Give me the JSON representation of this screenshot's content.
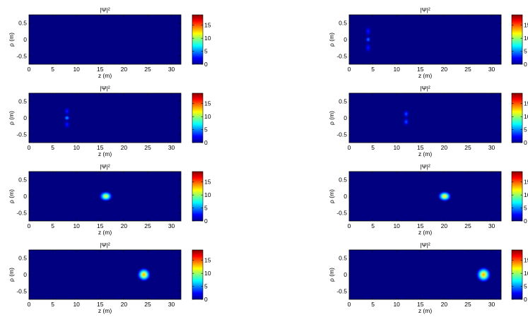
{
  "chart_data": [
    {
      "type": "heatmap",
      "title": "|Ψ|²",
      "xlabel": "z (m)",
      "ylabel": "ρ (m)",
      "xlim": [
        0,
        32
      ],
      "ylim": [
        -0.75,
        0.75
      ],
      "xticks": [
        0,
        5,
        10,
        15,
        20,
        25,
        30
      ],
      "yticks": [
        0.5,
        0,
        -0.5
      ],
      "colorbar": {
        "range": [
          0,
          19
        ],
        "ticks": [
          15,
          10,
          5,
          0
        ]
      },
      "blobs": []
    },
    {
      "type": "heatmap",
      "title": "|Ψ|²",
      "xlabel": "z (m)",
      "ylabel": "ρ (m)",
      "xlim": [
        0,
        32
      ],
      "ylim": [
        -0.75,
        0.75
      ],
      "xticks": [
        0,
        5,
        10,
        15,
        20,
        25,
        30
      ],
      "yticks": [
        0.5,
        0,
        -0.5
      ],
      "colorbar": {
        "range": [
          0,
          19
        ],
        "ticks": [
          15,
          10,
          5,
          0
        ]
      },
      "blobs": [
        {
          "z": 4,
          "rho": 0.25,
          "sz": 0.25,
          "srho": 0.06,
          "amp": 3
        },
        {
          "z": 4,
          "rho": 0,
          "sz": 0.2,
          "srho": 0.04,
          "amp": 5
        },
        {
          "z": 4,
          "rho": -0.25,
          "sz": 0.25,
          "srho": 0.06,
          "amp": 3
        }
      ]
    },
    {
      "type": "heatmap",
      "title": "|Ψ|²",
      "xlabel": "z (m)",
      "ylabel": "ρ (m)",
      "xlim": [
        0,
        32
      ],
      "ylim": [
        -0.75,
        0.75
      ],
      "xticks": [
        0,
        5,
        10,
        15,
        20,
        25,
        30
      ],
      "yticks": [
        0.5,
        0,
        -0.5
      ],
      "colorbar": {
        "range": [
          0,
          19
        ],
        "ticks": [
          15,
          10,
          5,
          0
        ]
      },
      "blobs": [
        {
          "z": 8,
          "rho": 0.2,
          "sz": 0.25,
          "srho": 0.05,
          "amp": 3
        },
        {
          "z": 8,
          "rho": 0,
          "sz": 0.25,
          "srho": 0.03,
          "amp": 6
        },
        {
          "z": 8,
          "rho": -0.2,
          "sz": 0.25,
          "srho": 0.05,
          "amp": 3
        }
      ]
    },
    {
      "type": "heatmap",
      "title": "|Ψ|²",
      "xlabel": "z (m)",
      "ylabel": "ρ (m)",
      "xlim": [
        0,
        32
      ],
      "ylim": [
        -0.75,
        0.75
      ],
      "xticks": [
        0,
        5,
        10,
        15,
        20,
        25,
        30
      ],
      "yticks": [
        0.5,
        0,
        -0.5
      ],
      "colorbar": {
        "range": [
          0,
          19
        ],
        "ticks": [
          15,
          10,
          5,
          0
        ]
      },
      "blobs": [
        {
          "z": 12,
          "rho": 0.12,
          "sz": 0.25,
          "srho": 0.05,
          "amp": 4
        },
        {
          "z": 12,
          "rho": -0.12,
          "sz": 0.25,
          "srho": 0.05,
          "amp": 4
        }
      ]
    },
    {
      "type": "heatmap",
      "title": "|Ψ|²",
      "xlabel": "z (m)",
      "ylabel": "ρ (m)",
      "xlim": [
        0,
        32
      ],
      "ylim": [
        -0.75,
        0.75
      ],
      "xticks": [
        0,
        5,
        10,
        15,
        20,
        25,
        30
      ],
      "yticks": [
        0.5,
        0,
        -0.5
      ],
      "colorbar": {
        "range": [
          0,
          19
        ],
        "ticks": [
          15,
          10,
          5,
          0
        ]
      },
      "blobs": [
        {
          "z": 16.2,
          "rho": 0,
          "sz": 0.55,
          "srho": 0.06,
          "amp": 12
        }
      ]
    },
    {
      "type": "heatmap",
      "title": "|Ψ|²",
      "xlabel": "z (m)",
      "ylabel": "ρ (m)",
      "xlim": [
        0,
        32
      ],
      "ylim": [
        -0.75,
        0.75
      ],
      "xticks": [
        0,
        5,
        10,
        15,
        20,
        25,
        30
      ],
      "yticks": [
        0.5,
        0,
        -0.5
      ],
      "colorbar": {
        "range": [
          0,
          19
        ],
        "ticks": [
          15,
          10,
          5,
          0
        ]
      },
      "blobs": [
        {
          "z": 20.1,
          "rho": 0,
          "sz": 0.55,
          "srho": 0.06,
          "amp": 13
        }
      ]
    },
    {
      "type": "heatmap",
      "title": "|Ψ|²",
      "xlabel": "z (m)",
      "ylabel": "ρ (m)",
      "xlim": [
        0,
        32
      ],
      "ylim": [
        -0.75,
        0.75
      ],
      "xticks": [
        0,
        5,
        10,
        15,
        20,
        25,
        30
      ],
      "yticks": [
        0.5,
        0,
        -0.5
      ],
      "colorbar": {
        "range": [
          0,
          19
        ],
        "ticks": [
          15,
          10,
          5,
          0
        ]
      },
      "blobs": [
        {
          "z": 24.2,
          "rho": 0,
          "sz": 0.55,
          "srho": 0.08,
          "amp": 14
        }
      ]
    },
    {
      "type": "heatmap",
      "title": "|Ψ|²",
      "xlabel": "z (m)",
      "ylabel": "ρ (m)",
      "xlim": [
        0,
        32
      ],
      "ylim": [
        -0.75,
        0.75
      ],
      "xticks": [
        0,
        5,
        10,
        15,
        20,
        25,
        30
      ],
      "yticks": [
        0.5,
        0,
        -0.5
      ],
      "colorbar": {
        "range": [
          0,
          19
        ],
        "ticks": [
          15,
          10,
          5,
          0
        ]
      },
      "blobs": [
        {
          "z": 28.3,
          "rho": 0,
          "sz": 0.6,
          "srho": 0.09,
          "amp": 14
        }
      ]
    }
  ]
}
